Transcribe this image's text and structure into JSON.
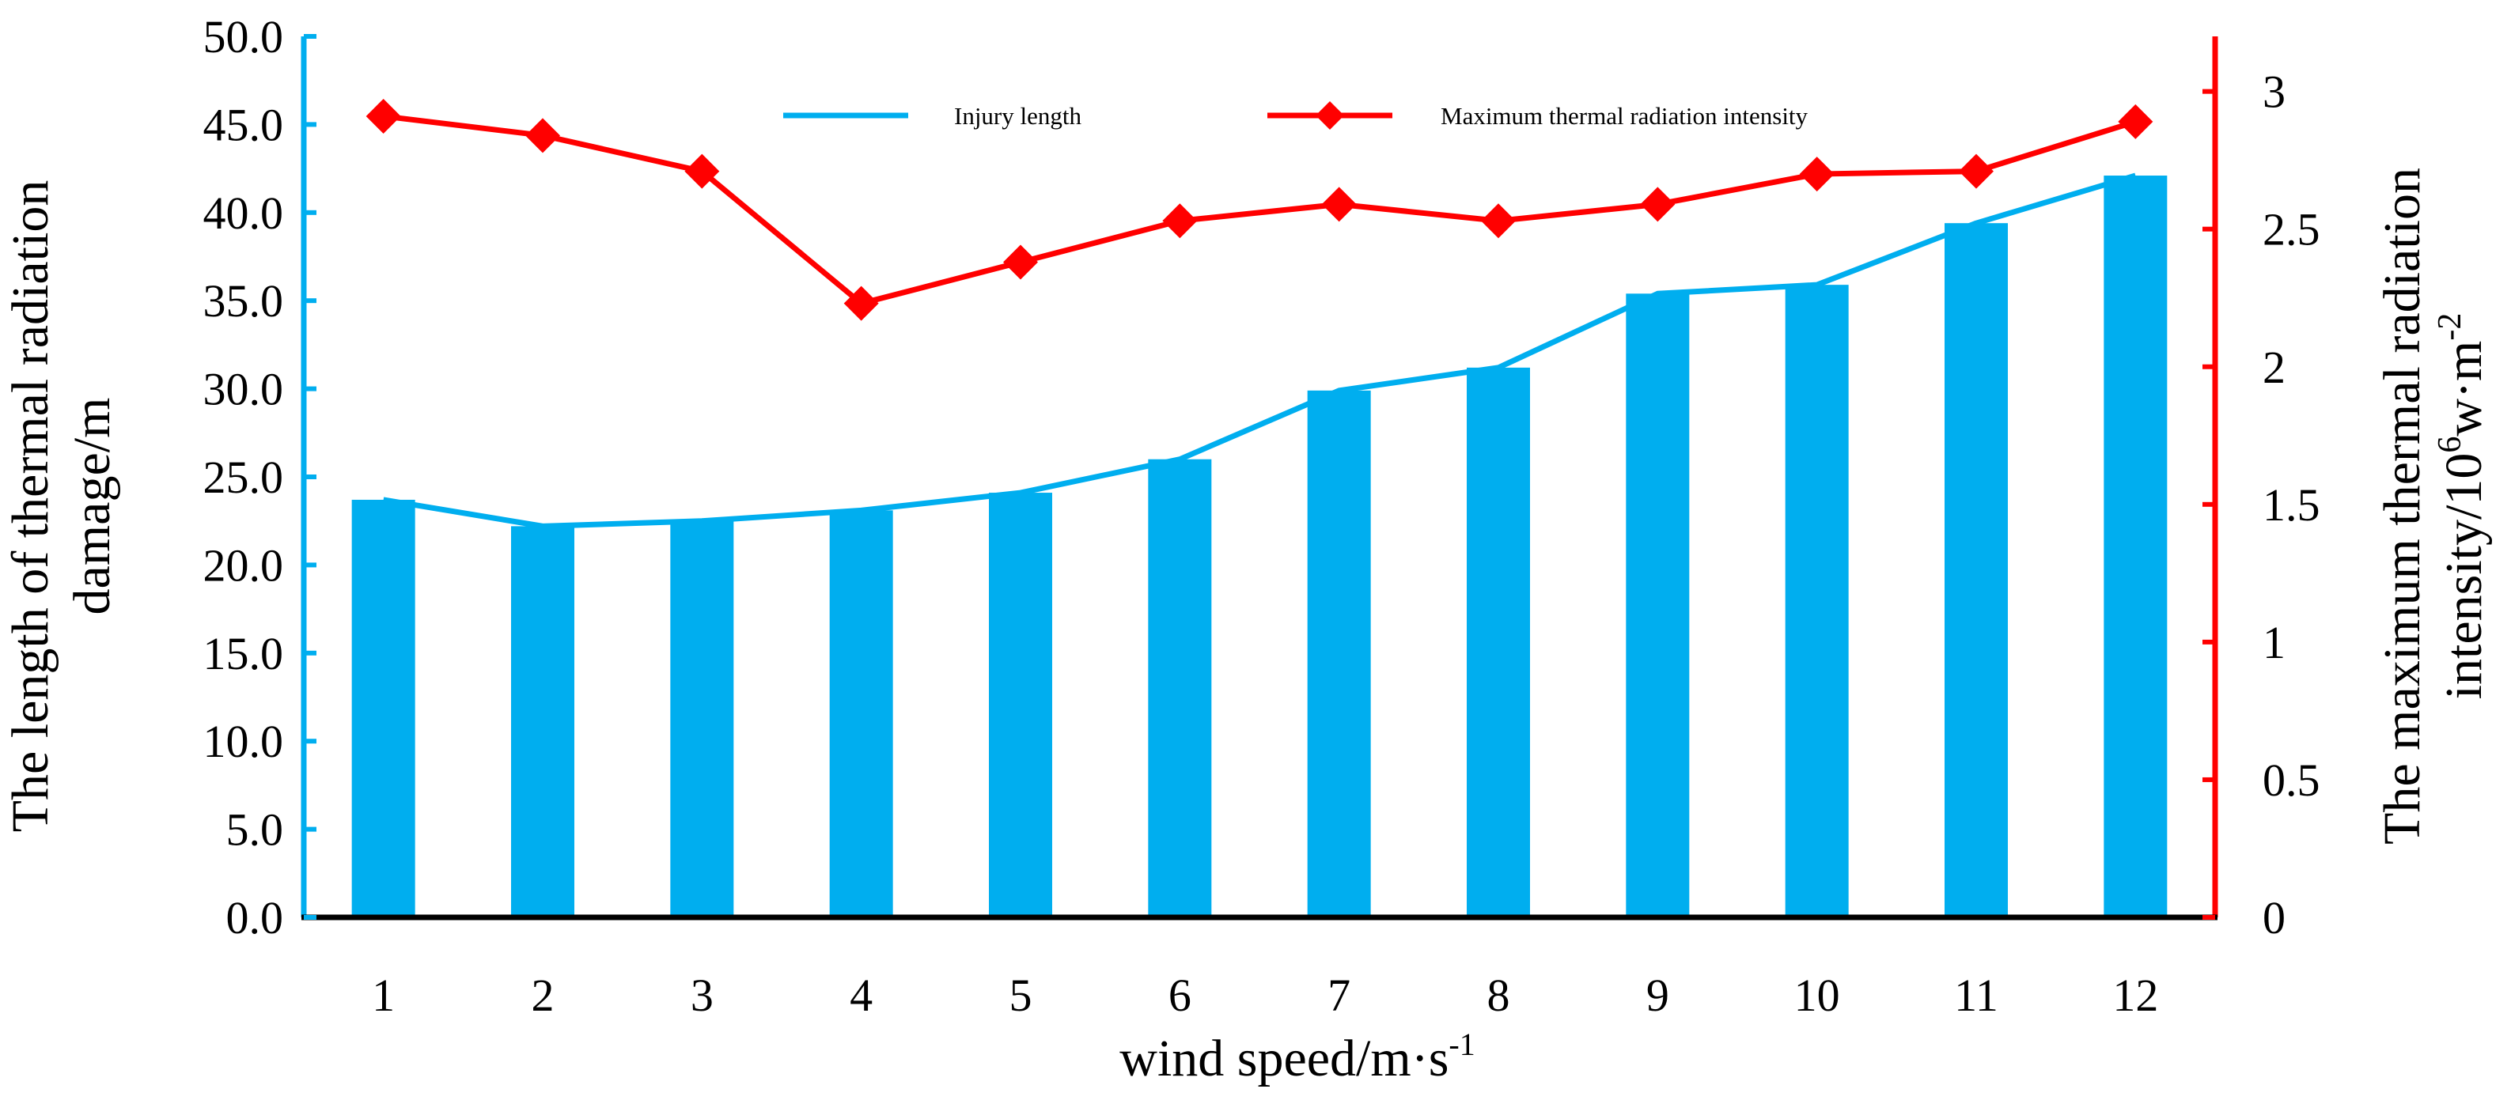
{
  "chart_data": {
    "type": "bar+line",
    "categories": [
      "1",
      "2",
      "3",
      "4",
      "5",
      "6",
      "7",
      "8",
      "9",
      "10",
      "11",
      "12"
    ],
    "series": [
      {
        "name": "Injury length",
        "type": "bar+line",
        "axis": "left",
        "values": [
          23.7,
          22.2,
          22.5,
          23.1,
          24.1,
          26.0,
          29.9,
          31.2,
          35.4,
          35.9,
          39.4,
          42.1
        ]
      },
      {
        "name": "Maximum thermal radiation intensity",
        "type": "line",
        "axis": "right",
        "marker": "diamond",
        "values": [
          2.91,
          2.84,
          2.71,
          2.23,
          2.38,
          2.53,
          2.59,
          2.53,
          2.59,
          2.7,
          2.71,
          2.89
        ]
      }
    ],
    "xlabel": {
      "main": "wind speed/m·s",
      "sup": "-1"
    },
    "ylabel_left": {
      "line1": "The length of thermal radiation",
      "line2": "damage/m"
    },
    "ylabel_right": {
      "line1": "The maximum thermal radiation",
      "line2_pre": "intensity/10",
      "line2_sup1": "6",
      "line2_mid": "w·m",
      "line2_sup2": "-2"
    },
    "y_left": {
      "min": 0,
      "max": 50,
      "ticks": [
        "0.0",
        "5.0",
        "10.0",
        "15.0",
        "20.0",
        "25.0",
        "30.0",
        "35.0",
        "40.0",
        "45.0",
        "50.0"
      ]
    },
    "y_right": {
      "min": 0,
      "max": 3.2,
      "ticks": [
        "0",
        "0.5",
        "1",
        "1.5",
        "2",
        "2.5",
        "3"
      ]
    },
    "legend": [
      "Injury length",
      "Maximum thermal radiation intensity"
    ],
    "colors": {
      "bar": "#00AEEF",
      "line_left": "#00AEEF",
      "line_right": "#FF0000",
      "axis_left": "#00AEEF",
      "axis_right": "#FF0000"
    }
  }
}
